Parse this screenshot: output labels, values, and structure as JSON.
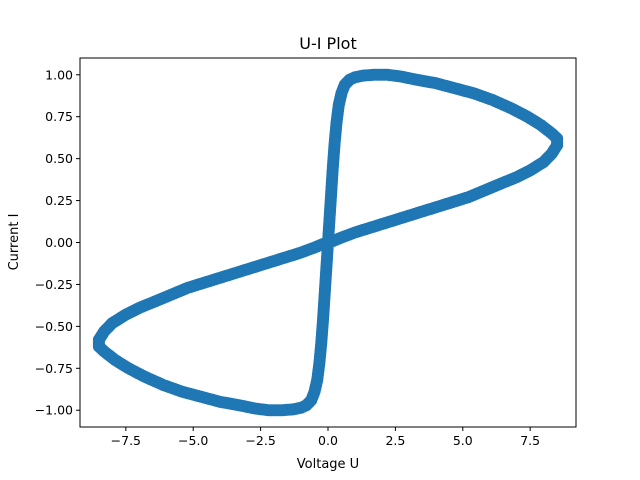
{
  "chart_data": {
    "type": "scatter",
    "title": "U-I Plot",
    "xlabel": "Voltage U",
    "ylabel": "Current I",
    "xlim": [
      -9.2,
      9.2
    ],
    "ylim": [
      -1.1,
      1.1
    ],
    "xticks": [
      -7.5,
      -5.0,
      -2.5,
      0.0,
      2.5,
      5.0,
      7.5
    ],
    "xtick_labels": [
      "−7.5",
      "−5.0",
      "−2.5",
      "0.0",
      "2.5",
      "5.0",
      "7.5"
    ],
    "yticks": [
      -1.0,
      -0.75,
      -0.5,
      -0.25,
      0.0,
      0.25,
      0.5,
      0.75,
      1.0
    ],
    "ytick_labels": [
      "−1.00",
      "−0.75",
      "−0.50",
      "−0.25",
      "0.00",
      "0.25",
      "0.50",
      "0.75",
      "1.00"
    ],
    "grid": false,
    "marker_color": "#1f77b4",
    "series": [
      {
        "x": [
          0.0,
          0.06,
          0.12,
          0.18,
          0.25,
          0.32,
          0.4,
          0.5,
          0.62,
          0.8,
          1.0,
          1.3,
          1.7,
          2.2,
          2.7,
          3.3,
          4.0,
          4.7,
          5.4,
          6.1,
          6.8,
          7.4,
          7.9,
          8.3,
          8.5,
          8.5,
          8.3,
          8.0,
          7.5,
          7.0,
          6.4,
          5.8,
          5.2,
          4.6,
          4.0,
          3.4,
          2.8,
          2.2,
          1.6,
          1.0,
          0.5,
          0.2,
          0.0,
          -0.06,
          -0.12,
          -0.18,
          -0.25,
          -0.32,
          -0.4,
          -0.5,
          -0.62,
          -0.8,
          -1.0,
          -1.3,
          -1.7,
          -2.2,
          -2.7,
          -3.3,
          -4.0,
          -4.7,
          -5.4,
          -6.1,
          -6.8,
          -7.4,
          -7.9,
          -8.3,
          -8.5,
          -8.5,
          -8.3,
          -8.0,
          -7.5,
          -7.0,
          -6.4,
          -5.8,
          -5.2,
          -4.6,
          -4.0,
          -3.4,
          -2.8,
          -2.2,
          -1.6,
          -1.0,
          -0.5,
          -0.2,
          0.0
        ],
        "y": [
          0.0,
          0.15,
          0.3,
          0.45,
          0.6,
          0.72,
          0.82,
          0.89,
          0.94,
          0.97,
          0.985,
          0.995,
          1.0,
          1.0,
          0.99,
          0.97,
          0.95,
          0.92,
          0.89,
          0.85,
          0.8,
          0.75,
          0.7,
          0.65,
          0.62,
          0.58,
          0.53,
          0.48,
          0.43,
          0.39,
          0.35,
          0.31,
          0.27,
          0.24,
          0.21,
          0.18,
          0.15,
          0.12,
          0.09,
          0.06,
          0.03,
          0.01,
          0.0,
          -0.15,
          -0.3,
          -0.45,
          -0.6,
          -0.72,
          -0.82,
          -0.89,
          -0.94,
          -0.97,
          -0.985,
          -0.995,
          -1.0,
          -1.0,
          -0.99,
          -0.97,
          -0.95,
          -0.92,
          -0.89,
          -0.85,
          -0.8,
          -0.75,
          -0.7,
          -0.65,
          -0.62,
          -0.58,
          -0.53,
          -0.48,
          -0.43,
          -0.39,
          -0.35,
          -0.31,
          -0.27,
          -0.24,
          -0.21,
          -0.18,
          -0.15,
          -0.12,
          -0.09,
          -0.06,
          -0.03,
          -0.01,
          0.0
        ]
      }
    ]
  }
}
